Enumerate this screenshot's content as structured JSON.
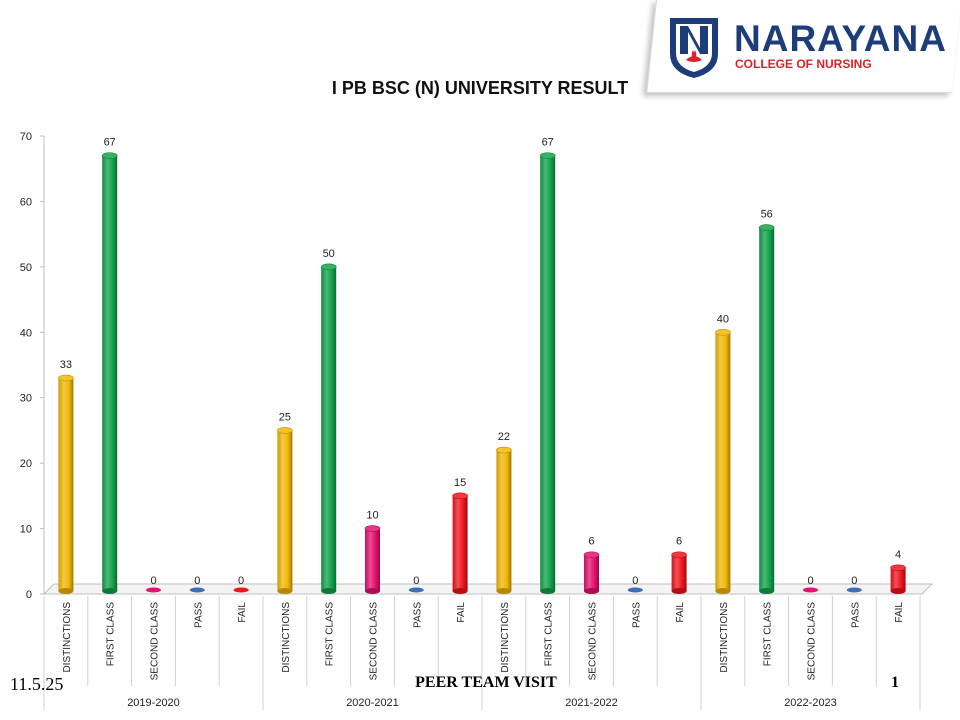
{
  "logo": {
    "name": "NARAYANA",
    "subtitle": "COLLEGE OF NURSING"
  },
  "footer": {
    "date": "11.5.25",
    "center": "PEER TEAM VISIT",
    "page": "1"
  },
  "chart_data": {
    "type": "bar",
    "title": "I PB BSC (N) UNIVERSITY RESULT",
    "ylim": [
      0,
      70
    ],
    "yticks": [
      0,
      10,
      20,
      30,
      40,
      50,
      60,
      70
    ],
    "categories": [
      "DISTINCTIONS",
      "FIRST CLASS",
      "SECOND CLASS",
      "PASS",
      "FAIL"
    ],
    "groups": [
      "2019-2020",
      "2020-2021",
      "2021-2022",
      "2022-2023"
    ],
    "values": [
      [
        33,
        67,
        0,
        0,
        0
      ],
      [
        25,
        50,
        10,
        0,
        15
      ],
      [
        22,
        67,
        6,
        0,
        6
      ],
      [
        40,
        56,
        0,
        0,
        4
      ]
    ],
    "colors": {
      "DISTINCTIONS": "#f2b705",
      "FIRST CLASS": "#12a24a",
      "SECOND CLASS": "#e6106e",
      "PASS": "#3d6fb6",
      "FAIL": "#f0141e"
    },
    "grid": false,
    "legend": "none"
  }
}
